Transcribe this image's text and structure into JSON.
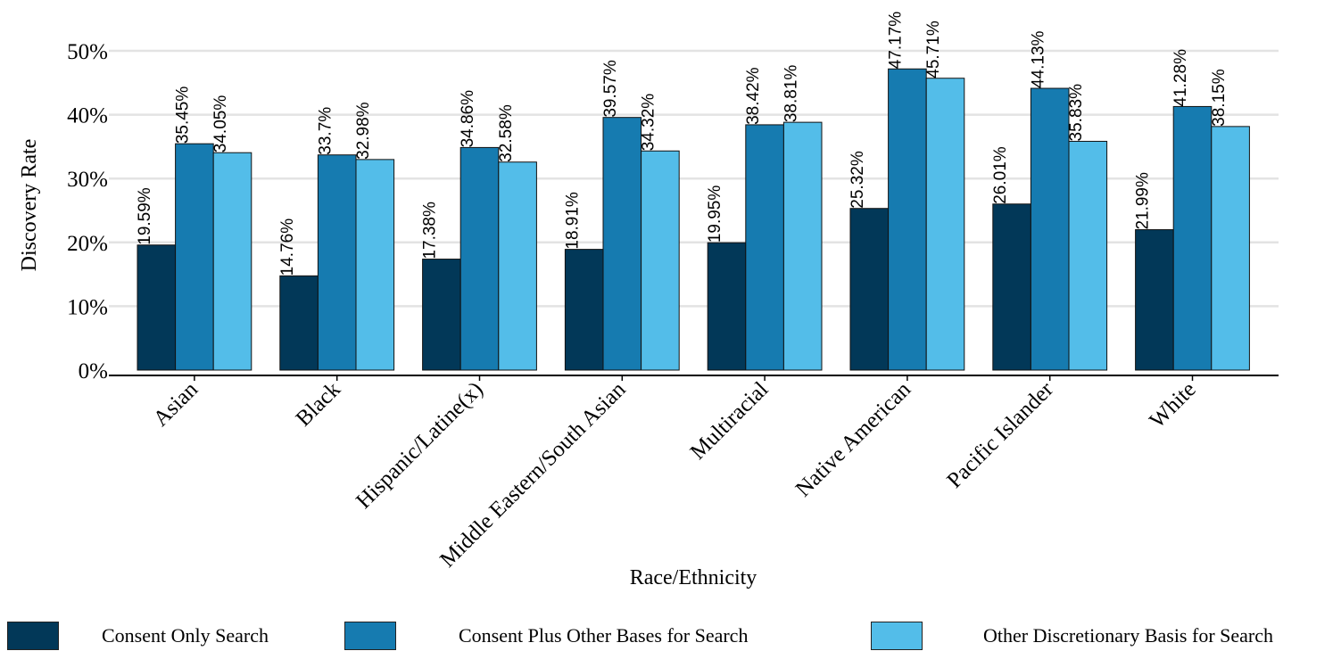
{
  "chart_data": {
    "type": "bar",
    "xlabel": "Race/Ethnicity",
    "ylabel": "Discovery Rate",
    "ylim": [
      0,
      50
    ],
    "yticks": [
      "0%",
      "10%",
      "20%",
      "30%",
      "40%",
      "50%"
    ],
    "grid": true,
    "legend_position": "bottom",
    "categories": [
      "Asian",
      "Black",
      "Hispanic/Latine(x)",
      "Middle Eastern/South Asian",
      "Multiracial",
      "Native American",
      "Pacific Islander",
      "White"
    ],
    "series": [
      {
        "name": "Consent Only Search",
        "color": "#023858",
        "values": [
          19.59,
          14.76,
          17.38,
          18.91,
          19.95,
          25.32,
          26.01,
          21.99
        ],
        "labels": [
          "19.59%",
          "14.76%",
          "17.38%",
          "18.91%",
          "19.95%",
          "25.32%",
          "26.01%",
          "21.99%"
        ]
      },
      {
        "name": "Consent Plus Other Bases for Search",
        "color": "#167bb0",
        "values": [
          35.45,
          33.7,
          34.86,
          39.57,
          38.42,
          47.17,
          44.13,
          41.28
        ],
        "labels": [
          "35.45%",
          "33.7%",
          "34.86%",
          "39.57%",
          "38.42%",
          "47.17%",
          "44.13%",
          "41.28%"
        ]
      },
      {
        "name": "Other Discretionary Basis for Search",
        "color": "#53bde9",
        "values": [
          34.05,
          32.98,
          32.58,
          34.32,
          38.81,
          45.71,
          35.83,
          38.15
        ],
        "labels": [
          "34.05%",
          "32.98%",
          "32.58%",
          "34.32%",
          "38.81%",
          "45.71%",
          "35.83%",
          "38.15%"
        ]
      }
    ]
  }
}
